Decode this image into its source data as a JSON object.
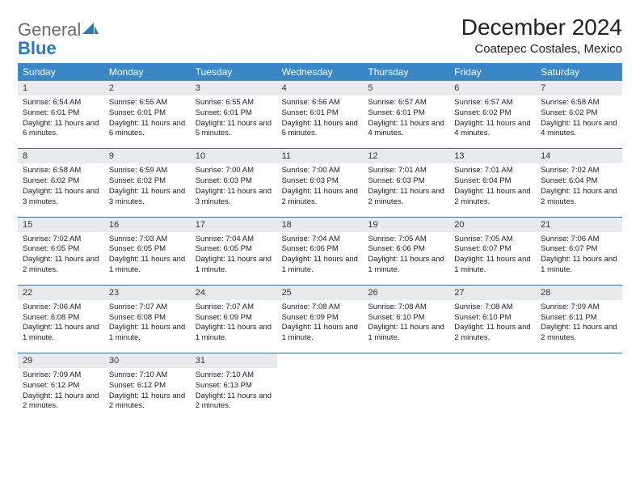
{
  "brand": {
    "part1": "General",
    "part2": "Blue"
  },
  "title": "December 2024",
  "location": "Coatepec Costales, Mexico",
  "colors": {
    "header_bg": "#3a87c7",
    "week_border": "#3a6fa5",
    "daynum_bg": "#e8eaec",
    "text": "#222222",
    "logo_gray": "#6b6b6b",
    "logo_blue": "#2a7ab8"
  },
  "dow": [
    "Sunday",
    "Monday",
    "Tuesday",
    "Wednesday",
    "Thursday",
    "Friday",
    "Saturday"
  ],
  "weeks": [
    [
      {
        "n": "1",
        "sr": "6:54 AM",
        "ss": "6:01 PM",
        "dl": "11 hours and 6 minutes."
      },
      {
        "n": "2",
        "sr": "6:55 AM",
        "ss": "6:01 PM",
        "dl": "11 hours and 6 minutes."
      },
      {
        "n": "3",
        "sr": "6:55 AM",
        "ss": "6:01 PM",
        "dl": "11 hours and 5 minutes."
      },
      {
        "n": "4",
        "sr": "6:56 AM",
        "ss": "6:01 PM",
        "dl": "11 hours and 5 minutes."
      },
      {
        "n": "5",
        "sr": "6:57 AM",
        "ss": "6:01 PM",
        "dl": "11 hours and 4 minutes."
      },
      {
        "n": "6",
        "sr": "6:57 AM",
        "ss": "6:02 PM",
        "dl": "11 hours and 4 minutes."
      },
      {
        "n": "7",
        "sr": "6:58 AM",
        "ss": "6:02 PM",
        "dl": "11 hours and 4 minutes."
      }
    ],
    [
      {
        "n": "8",
        "sr": "6:58 AM",
        "ss": "6:02 PM",
        "dl": "11 hours and 3 minutes."
      },
      {
        "n": "9",
        "sr": "6:59 AM",
        "ss": "6:02 PM",
        "dl": "11 hours and 3 minutes."
      },
      {
        "n": "10",
        "sr": "7:00 AM",
        "ss": "6:03 PM",
        "dl": "11 hours and 3 minutes."
      },
      {
        "n": "11",
        "sr": "7:00 AM",
        "ss": "6:03 PM",
        "dl": "11 hours and 2 minutes."
      },
      {
        "n": "12",
        "sr": "7:01 AM",
        "ss": "6:03 PM",
        "dl": "11 hours and 2 minutes."
      },
      {
        "n": "13",
        "sr": "7:01 AM",
        "ss": "6:04 PM",
        "dl": "11 hours and 2 minutes."
      },
      {
        "n": "14",
        "sr": "7:02 AM",
        "ss": "6:04 PM",
        "dl": "11 hours and 2 minutes."
      }
    ],
    [
      {
        "n": "15",
        "sr": "7:02 AM",
        "ss": "6:05 PM",
        "dl": "11 hours and 2 minutes."
      },
      {
        "n": "16",
        "sr": "7:03 AM",
        "ss": "6:05 PM",
        "dl": "11 hours and 1 minute."
      },
      {
        "n": "17",
        "sr": "7:04 AM",
        "ss": "6:05 PM",
        "dl": "11 hours and 1 minute."
      },
      {
        "n": "18",
        "sr": "7:04 AM",
        "ss": "6:06 PM",
        "dl": "11 hours and 1 minute."
      },
      {
        "n": "19",
        "sr": "7:05 AM",
        "ss": "6:06 PM",
        "dl": "11 hours and 1 minute."
      },
      {
        "n": "20",
        "sr": "7:05 AM",
        "ss": "6:07 PM",
        "dl": "11 hours and 1 minute."
      },
      {
        "n": "21",
        "sr": "7:06 AM",
        "ss": "6:07 PM",
        "dl": "11 hours and 1 minute."
      }
    ],
    [
      {
        "n": "22",
        "sr": "7:06 AM",
        "ss": "6:08 PM",
        "dl": "11 hours and 1 minute."
      },
      {
        "n": "23",
        "sr": "7:07 AM",
        "ss": "6:08 PM",
        "dl": "11 hours and 1 minute."
      },
      {
        "n": "24",
        "sr": "7:07 AM",
        "ss": "6:09 PM",
        "dl": "11 hours and 1 minute."
      },
      {
        "n": "25",
        "sr": "7:08 AM",
        "ss": "6:09 PM",
        "dl": "11 hours and 1 minute."
      },
      {
        "n": "26",
        "sr": "7:08 AM",
        "ss": "6:10 PM",
        "dl": "11 hours and 1 minute."
      },
      {
        "n": "27",
        "sr": "7:08 AM",
        "ss": "6:10 PM",
        "dl": "11 hours and 2 minutes."
      },
      {
        "n": "28",
        "sr": "7:09 AM",
        "ss": "6:11 PM",
        "dl": "11 hours and 2 minutes."
      }
    ],
    [
      {
        "n": "29",
        "sr": "7:09 AM",
        "ss": "6:12 PM",
        "dl": "11 hours and 2 minutes."
      },
      {
        "n": "30",
        "sr": "7:10 AM",
        "ss": "6:12 PM",
        "dl": "11 hours and 2 minutes."
      },
      {
        "n": "31",
        "sr": "7:10 AM",
        "ss": "6:13 PM",
        "dl": "11 hours and 2 minutes."
      },
      null,
      null,
      null,
      null
    ]
  ],
  "labels": {
    "sunrise": "Sunrise: ",
    "sunset": "Sunset: ",
    "daylight": "Daylight: "
  }
}
